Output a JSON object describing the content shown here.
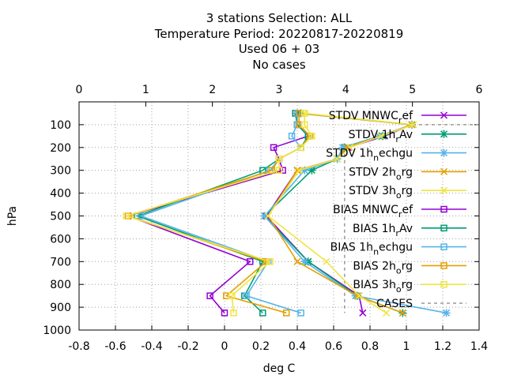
{
  "title_lines": [
    "3 stations Selection: ALL",
    "Temperature  Period: 20220817-20220819",
    "Used  06 + 03",
    "No cases"
  ],
  "chart_data": {
    "type": "line",
    "title": "3 stations Selection: ALL Temperature  Period: 20220817-20220819 Used  06 + 03 No cases",
    "xlabel": "deg C",
    "ylabel": "hPa",
    "xlim": [
      -0.8,
      1.4
    ],
    "ylim": [
      1000,
      0
    ],
    "x_ticks": [
      "-0.8",
      "-0.6",
      "-0.4",
      "-0.2",
      "0",
      "0.2",
      "0.4",
      "0.6",
      "0.8",
      "1",
      "1.2",
      "1.4"
    ],
    "y_ticks": [
      "100",
      "200",
      "300",
      "400",
      "500",
      "600",
      "700",
      "800",
      "900",
      "1000"
    ],
    "x2label": "",
    "x2lim": [
      0,
      6
    ],
    "x2_ticks": [
      "0",
      "1",
      "2",
      "3",
      "4",
      "5",
      "6"
    ],
    "grid": true,
    "legend_position": "top-right",
    "levels": [
      50,
      100,
      150,
      200,
      250,
      300,
      500,
      700,
      850,
      925
    ],
    "series": [
      {
        "name": "STDV MNWC_ref",
        "legend": {
          "pre": "STDV MNWC",
          "sub": "r",
          "post": "ef"
        },
        "color": "#9400d3",
        "marker": "x",
        "values": [
          0.41,
          1.03,
          0.88,
          0.68,
          0.62,
          0.4,
          0.23,
          0.46,
          0.74,
          0.76
        ]
      },
      {
        "name": "STDV 1h_rAv",
        "legend": {
          "pre": "STDV 1h",
          "sub": "r",
          "post": "Av"
        },
        "color": "#009e73",
        "marker": "*",
        "values": [
          0.42,
          1.03,
          0.87,
          0.66,
          0.62,
          0.48,
          0.22,
          0.46,
          0.73,
          0.98
        ]
      },
      {
        "name": "STDV 1h_nechgu",
        "legend": {
          "pre": "STDV 1h",
          "sub": "n",
          "post": "echgu"
        },
        "color": "#56b4e9",
        "marker": "*",
        "values": [
          0.4,
          1.03,
          0.85,
          0.65,
          0.62,
          0.44,
          0.22,
          0.44,
          0.72,
          1.22
        ]
      },
      {
        "name": "STDV 2h_org",
        "legend": {
          "pre": "STDV 2h",
          "sub": "o",
          "post": "rg"
        },
        "color": "#e69f00",
        "marker": "x",
        "values": [
          0.41,
          1.03,
          0.86,
          0.67,
          0.62,
          0.4,
          0.24,
          0.4,
          0.73,
          0.98
        ]
      },
      {
        "name": "STDV 3h_org",
        "legend": {
          "pre": "STDV 3h",
          "sub": "o",
          "post": "rg"
        },
        "color": "#f0e442",
        "marker": "x",
        "values": [
          0.44,
          1.04,
          0.86,
          0.69,
          0.62,
          0.41,
          0.24,
          0.56,
          0.74,
          0.89
        ]
      },
      {
        "name": "BIAS MNWC_ref",
        "legend": {
          "pre": "BIAS MNWC",
          "sub": "r",
          "post": "ef"
        },
        "color": "#9400d3",
        "marker": "square",
        "values": [
          0.39,
          0.4,
          0.46,
          0.27,
          0.3,
          0.32,
          -0.53,
          0.14,
          -0.08,
          0.0
        ]
      },
      {
        "name": "BIAS 1h_rAv",
        "legend": {
          "pre": "BIAS 1h",
          "sub": "r",
          "post": "Av"
        },
        "color": "#009e73",
        "marker": "square",
        "values": [
          0.39,
          0.4,
          0.46,
          0.42,
          0.3,
          0.21,
          -0.48,
          0.21,
          0.11,
          0.21
        ]
      },
      {
        "name": "BIAS 1h_nechgu",
        "legend": {
          "pre": "BIAS 1h",
          "sub": "n",
          "post": "echgu"
        },
        "color": "#56b4e9",
        "marker": "square",
        "values": [
          0.4,
          0.4,
          0.37,
          0.42,
          0.3,
          0.25,
          -0.46,
          0.24,
          0.12,
          0.42
        ]
      },
      {
        "name": "BIAS 2h_org",
        "legend": {
          "pre": "BIAS 2h",
          "sub": "o",
          "post": "rg"
        },
        "color": "#e69f00",
        "marker": "square",
        "values": [
          0.41,
          0.41,
          0.47,
          0.42,
          0.3,
          0.26,
          -0.53,
          0.23,
          0.01,
          0.34
        ]
      },
      {
        "name": "BIAS 3h_org",
        "legend": {
          "pre": "BIAS 3h",
          "sub": "o",
          "post": "rg"
        },
        "color": "#f0e442",
        "marker": "square",
        "values": [
          0.44,
          0.44,
          0.48,
          0.42,
          0.3,
          0.3,
          -0.54,
          0.25,
          0.04,
          0.05
        ]
      },
      {
        "name": "CASES",
        "legend": {
          "pre": "CASES",
          "sub": "",
          "post": ""
        },
        "color": "#999999",
        "marker": "none",
        "dash": true
      }
    ]
  }
}
